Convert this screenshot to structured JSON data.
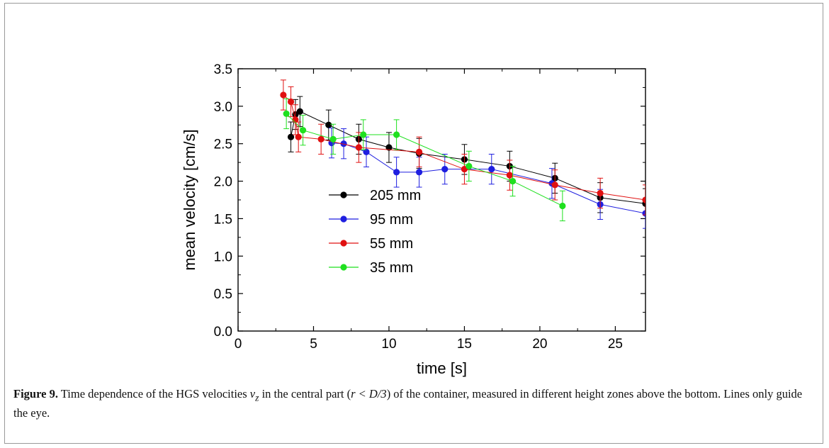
{
  "chart_data": {
    "type": "line",
    "xlabel": "time [s]",
    "ylabel": "mean velocity [cm/s]",
    "xlim": [
      0,
      27
    ],
    "ylim": [
      0.0,
      3.5
    ],
    "x_ticks": [
      "0",
      "5",
      "10",
      "15",
      "20",
      "25"
    ],
    "y_ticks": [
      "0.0",
      "0.5",
      "1.0",
      "1.5",
      "2.0",
      "2.5",
      "3.0",
      "3.5"
    ],
    "grid": false,
    "legend_position": "lower-left",
    "error_bars": true,
    "series": [
      {
        "name": "205 mm",
        "color": "#000000",
        "x": [
          3.5,
          3.8,
          4.1,
          6.0,
          8.0,
          10.0,
          12.0,
          15.0,
          18.0,
          21.0,
          24.0,
          27.0
        ],
        "y": [
          2.59,
          2.89,
          2.93,
          2.75,
          2.56,
          2.45,
          2.37,
          2.29,
          2.2,
          2.04,
          1.78,
          1.7
        ],
        "err": [
          0.2,
          0.2,
          0.2,
          0.2,
          0.2,
          0.2,
          0.2,
          0.2,
          0.2,
          0.2,
          0.2,
          0.2
        ]
      },
      {
        "name": "95 mm",
        "color": "#1f1fe0",
        "x": [
          6.2,
          7.0,
          8.5,
          10.5,
          12.0,
          13.7,
          16.8,
          20.8,
          24.0,
          27.0
        ],
        "y": [
          2.51,
          2.5,
          2.39,
          2.12,
          2.12,
          2.16,
          2.16,
          1.97,
          1.69,
          1.57
        ],
        "err": [
          0.2,
          0.2,
          0.2,
          0.2,
          0.2,
          0.2,
          0.2,
          0.2,
          0.2,
          0.2
        ]
      },
      {
        "name": "55 mm",
        "color": "#e01010",
        "x": [
          3.0,
          3.5,
          3.8,
          4.0,
          5.5,
          8.0,
          12.0,
          15.0,
          18.0,
          21.0,
          24.0,
          27.0
        ],
        "y": [
          3.15,
          3.06,
          2.82,
          2.59,
          2.56,
          2.45,
          2.39,
          2.16,
          2.08,
          1.95,
          1.84,
          1.75
        ],
        "err": [
          0.2,
          0.2,
          0.2,
          0.2,
          0.2,
          0.2,
          0.2,
          0.2,
          0.2,
          0.2,
          0.2,
          0.2
        ]
      },
      {
        "name": "35 mm",
        "color": "#1fe01f",
        "x": [
          3.2,
          4.3,
          6.3,
          8.3,
          10.5,
          15.3,
          18.2,
          21.5
        ],
        "y": [
          2.9,
          2.68,
          2.56,
          2.62,
          2.62,
          2.2,
          2.0,
          1.67
        ],
        "err": [
          0.2,
          0.2,
          0.2,
          0.2,
          0.2,
          0.2,
          0.2,
          0.2
        ]
      }
    ]
  },
  "caption": {
    "label": "Figure 9.",
    "text_1": "Time dependence of the HGS velocities ",
    "v_sym": "v",
    "v_sub": "z",
    "text_2": " in the central part (",
    "math_expr": "r < D/3",
    "text_3": ") of the container, measured in different height zones above the bottom. Lines only guide the eye."
  }
}
